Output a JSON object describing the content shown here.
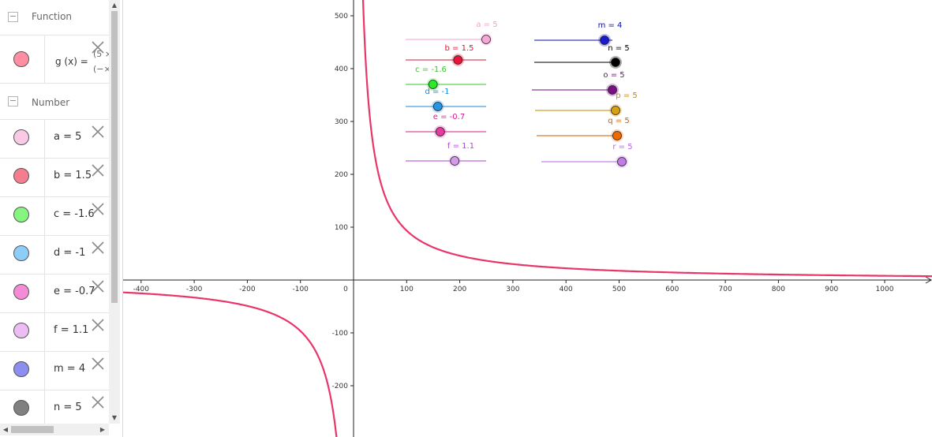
{
  "algebra": {
    "function_header": "Function",
    "number_header": "Number",
    "function_row": {
      "text_top": "(5 ×",
      "text_mid": "g (x)  =",
      "text_bot": "(−×",
      "color": "#ff7f90"
    },
    "numbers": [
      {
        "name": "a",
        "label": "a = 5",
        "color": "#f9c9e6"
      },
      {
        "name": "b",
        "label": "b = 1.5",
        "color": "#f57e8e"
      },
      {
        "name": "c",
        "label": "c = -1.6",
        "color": "#86f580"
      },
      {
        "name": "d",
        "label": "d = -1",
        "color": "#8ccef7"
      },
      {
        "name": "e",
        "label": "e = -0.7",
        "color": "#f58ad6"
      },
      {
        "name": "f",
        "label": "f = 1.1",
        "color": "#edbcf5"
      },
      {
        "name": "m",
        "label": "m = 4",
        "color": "#8a8ff0"
      },
      {
        "name": "n",
        "label": "n = 5",
        "color": "#808080"
      }
    ]
  },
  "graph": {
    "curve_color": "#e8356a",
    "x_ticks": [
      "-400",
      "-300",
      "-200",
      "-100",
      "0",
      "100",
      "200",
      "300",
      "400",
      "500",
      "600",
      "700",
      "800",
      "900",
      "1000"
    ],
    "y_ticks": [
      "500",
      "400",
      "300",
      "200",
      "100",
      "-100",
      "-200"
    ],
    "sliders": [
      {
        "label": "a = 5",
        "value": 5,
        "min": -5,
        "max": 5,
        "color": "#f5a0d0",
        "dot": "#f7a8d8"
      },
      {
        "label": "b = 1.5",
        "value": 1.5,
        "min": -5,
        "max": 5,
        "color": "#d41a33",
        "dot": "#e8163a"
      },
      {
        "label": "c = -1.6",
        "value": -1.6,
        "min": -5,
        "max": 5,
        "color": "#35c52e",
        "dot": "#2ee82a"
      },
      {
        "label": "d = -1",
        "value": -1,
        "min": -5,
        "max": 5,
        "color": "#1e8ad6",
        "dot": "#2994e0"
      },
      {
        "label": "e = -0.7",
        "value": -0.7,
        "min": -5,
        "max": 5,
        "color": "#d6208a",
        "dot": "#e63aa0"
      },
      {
        "label": "f = 1.1",
        "value": 1.1,
        "min": -5,
        "max": 5,
        "color": "#b044d4",
        "dot": "#d39ae8"
      },
      {
        "label": "m = 4",
        "value": 4,
        "min": -5,
        "max": 5,
        "color": "#0c0ca6",
        "dot": "#1a1acc"
      },
      {
        "label": "n = 5",
        "value": 5,
        "min": -5,
        "max": 5,
        "color": "#000000",
        "dot": "#000000"
      },
      {
        "label": "o = 5",
        "value": 5,
        "min": -5,
        "max": 5,
        "color": "#6b0d7a",
        "dot": "#7a1085"
      },
      {
        "label": "p = 5",
        "value": 5,
        "min": -5,
        "max": 5,
        "color": "#c58a00",
        "dot": "#d9a010"
      },
      {
        "label": "q = 5",
        "value": 5,
        "min": -5,
        "max": 5,
        "color": "#d45d00",
        "dot": "#f06a00"
      },
      {
        "label": "r = 5",
        "value": 5,
        "min": -5,
        "max": 5,
        "color": "#b866e0",
        "dot": "#c27ce8"
      }
    ]
  }
}
